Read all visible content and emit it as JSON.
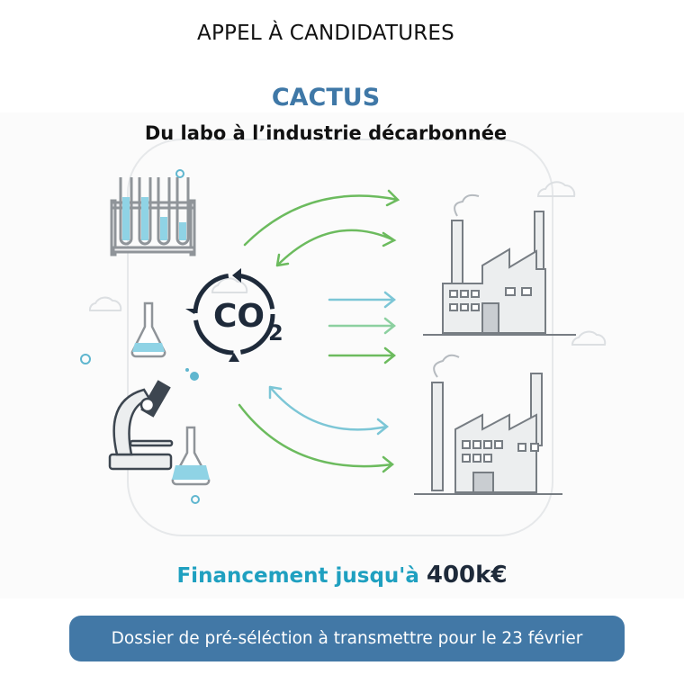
{
  "header": {
    "title": "APPEL À CANDIDATURES",
    "program_name": "CACTUS",
    "subtitle": "Du labo à l’industrie décarbonnée"
  },
  "illustration": {
    "co2_label": "CO",
    "co2_subscript": "2",
    "icons": [
      "test-tubes-icon",
      "flask-icon",
      "microscope-icon",
      "co2-cycle-icon",
      "factory-icon",
      "arrow-icon",
      "cloud-icon"
    ]
  },
  "funding": {
    "label": "Financement jusqu'à ",
    "amount": "400k€"
  },
  "cta": {
    "label": "Dossier de pré-séléction à transmettre pour le 23 février"
  },
  "colors": {
    "brand_blue": "#3f78a7",
    "teal": "#1fa0c0",
    "navy": "#1e2a3a",
    "button": "#4278a6",
    "green_arrow": "#6cbb5e",
    "blue_arrow": "#7cc6d6"
  }
}
